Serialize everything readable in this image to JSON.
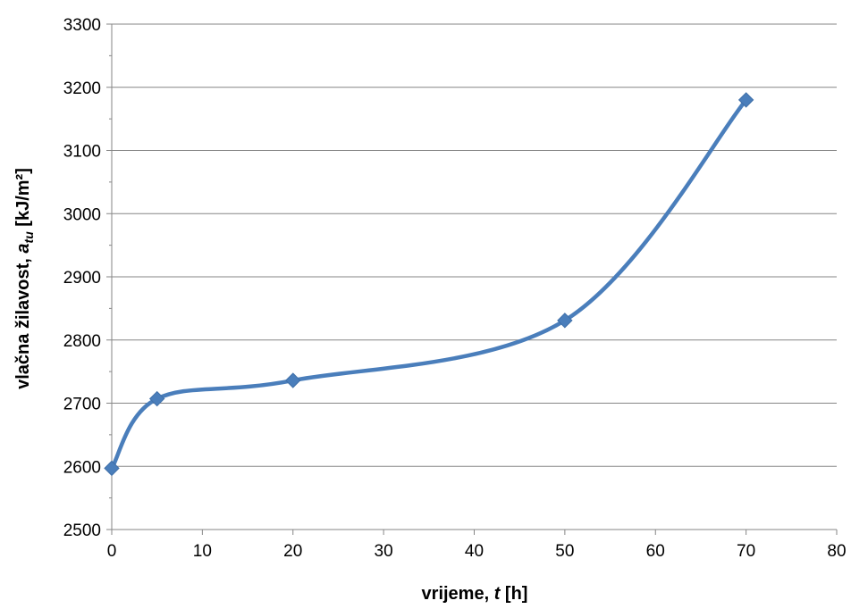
{
  "chart_data": {
    "type": "line",
    "title": "",
    "xlabel": {
      "prefix": "vrijeme, ",
      "variable": "t",
      "suffix": " [h]"
    },
    "ylabel": {
      "prefix": "vlačna žilavost, ",
      "variable": "a",
      "subscript": "tu",
      "suffix": " [kJ/m²]"
    },
    "xlim": [
      0,
      80
    ],
    "ylim": [
      2500,
      3300
    ],
    "xticks": [
      0,
      10,
      20,
      30,
      40,
      50,
      60,
      70,
      80
    ],
    "yticks": [
      2500,
      2600,
      2700,
      2800,
      2900,
      3000,
      3100,
      3200,
      3300
    ],
    "grid": "horizontal",
    "smooth": true,
    "legend": "none",
    "series": [
      {
        "color": "#4a7ebb",
        "marker": "diamond",
        "x": [
          0,
          5,
          20,
          50,
          70
        ],
        "y": [
          2597,
          2707,
          2736,
          2831,
          3180
        ]
      }
    ]
  }
}
